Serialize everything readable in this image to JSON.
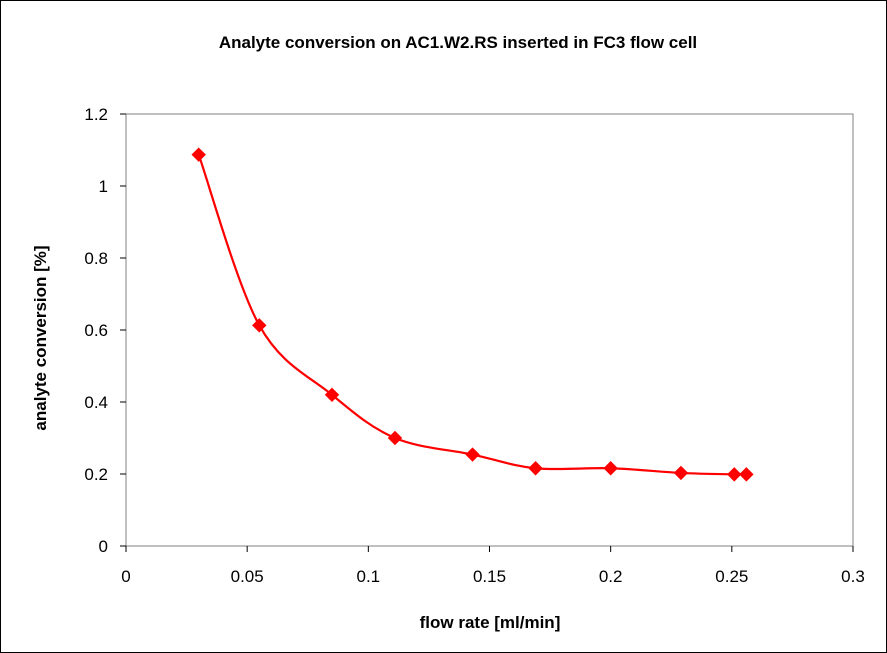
{
  "chart_data": {
    "type": "scatter",
    "title": "Analyte conversion on AC1.W2.RS inserted in FC3 flow cell",
    "xlabel": "flow rate [ml/min]",
    "ylabel": "analyte conversion [%]",
    "xlim": [
      0,
      0.3
    ],
    "ylim": [
      0,
      1.2
    ],
    "xticks": [
      0,
      0.05,
      0.1,
      0.15,
      0.2,
      0.25,
      0.3
    ],
    "yticks": [
      0,
      0.2,
      0.4,
      0.6,
      0.8,
      1,
      1.2
    ],
    "xtick_labels": [
      "0",
      "0.05",
      "0.1",
      "0.15",
      "0.2",
      "0.25",
      "0.3"
    ],
    "ytick_labels": [
      "0",
      "0.2",
      "0.4",
      "0.6",
      "0.8",
      "1",
      "1.2"
    ],
    "grid": false,
    "legend": "none",
    "line": "smoothed",
    "marker": "diamond",
    "colors": {
      "series": "#ff0000",
      "plot_background": "#ffffff",
      "axis": "#808080"
    },
    "series": [
      {
        "x": [
          0.03,
          0.055,
          0.085,
          0.111,
          0.143,
          0.169,
          0.2,
          0.229,
          0.251,
          0.256
        ],
        "y": [
          1.087,
          0.613,
          0.42,
          0.3,
          0.254,
          0.216,
          0.216,
          0.203,
          0.199,
          0.199
        ]
      }
    ]
  }
}
